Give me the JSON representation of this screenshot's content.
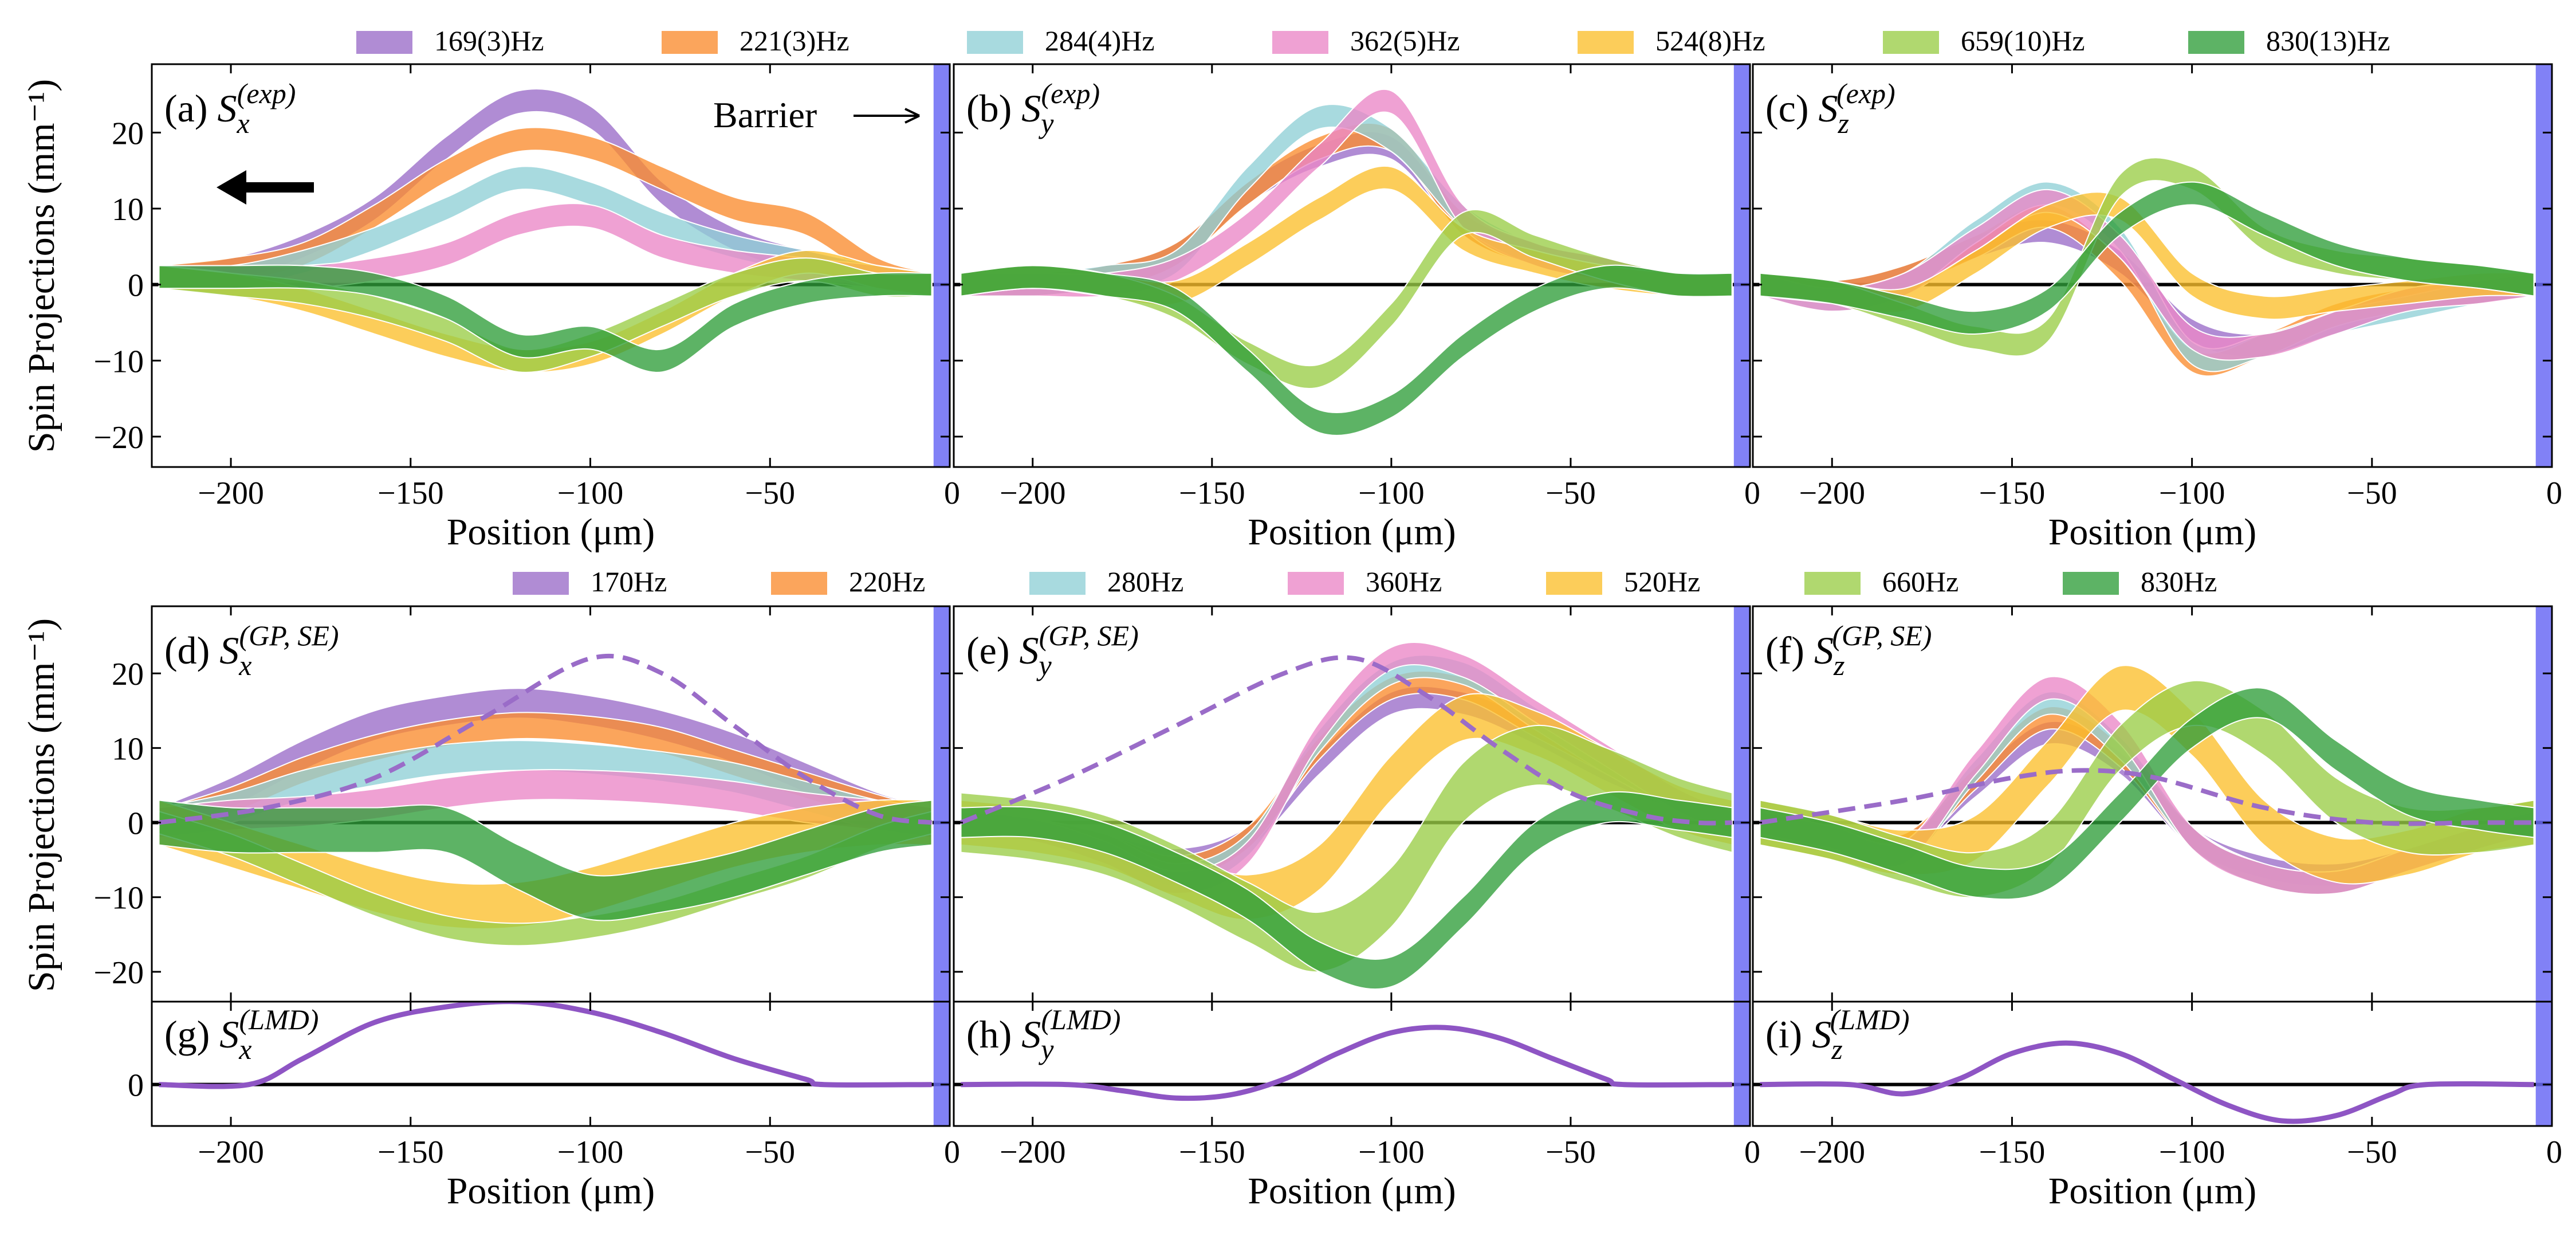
{
  "figure": {
    "ylabel": "Spin Projections (mm⁻¹)",
    "xlabel": "Position (μm)",
    "annotation": "Barrier",
    "xticks": [
      "−200",
      "−150",
      "−100",
      "−50",
      "0"
    ],
    "colors": {
      "s1": "#9a6cc8",
      "s2": "#fa8c2e",
      "s3": "#8fcfd6",
      "s4": "#ea86c6",
      "s5": "#fbbf2b",
      "s6": "#9acd47",
      "s7": "#2f9e3a",
      "barrier": "#6b6bf4",
      "zero": "#000000",
      "lmd": "#8e55c4"
    }
  },
  "legend_top": [
    "169(3)Hz",
    "221(3)Hz",
    "284(4)Hz",
    "362(5)Hz",
    "524(8)Hz",
    "659(10)Hz",
    "830(13)Hz"
  ],
  "legend_bottom": [
    "170Hz",
    "220Hz",
    "280Hz",
    "360Hz",
    "520Hz",
    "660Hz",
    "830Hz"
  ],
  "panels": {
    "a": {
      "tag": "(a)",
      "sub": "x",
      "sup": "(exp)"
    },
    "b": {
      "tag": "(b)",
      "sub": "y",
      "sup": "(exp)"
    },
    "c": {
      "tag": "(c)",
      "sub": "z",
      "sup": "(exp)"
    },
    "d": {
      "tag": "(d)",
      "sub": "x",
      "sup": "(GP, SE)"
    },
    "e": {
      "tag": "(e)",
      "sub": "y",
      "sup": "(GP, SE)"
    },
    "f": {
      "tag": "(f)",
      "sub": "z",
      "sup": "(GP, SE)"
    },
    "g": {
      "tag": "(g)",
      "sub": "x",
      "sup": "(LMD)"
    },
    "h": {
      "tag": "(h)",
      "sub": "y",
      "sup": "(LMD)"
    },
    "i": {
      "tag": "(i)",
      "sub": "z",
      "sup": "(LMD)"
    }
  },
  "chart_data": [
    {
      "type": "area",
      "panel": "a",
      "title": "(a) S_x^(exp)",
      "xlim": [
        -222,
        0
      ],
      "ylim": [
        -24,
        29
      ],
      "yticks": [
        -20,
        -10,
        0,
        10,
        20
      ],
      "x": [
        -220,
        -200,
        -180,
        -160,
        -140,
        -120,
        -100,
        -80,
        -60,
        -40,
        -20,
        -5
      ],
      "series": [
        {
          "name": "169(3)Hz",
          "values": [
            1,
            2,
            5,
            10,
            18,
            24,
            22,
            12,
            6,
            3,
            1,
            0
          ],
          "width": 3
        },
        {
          "name": "221(3)Hz",
          "values": [
            1,
            2,
            4,
            9,
            15,
            19,
            18,
            14,
            10,
            8,
            2,
            0
          ],
          "width": 3
        },
        {
          "name": "284(4)Hz",
          "values": [
            1,
            1,
            3,
            6,
            10,
            14,
            12,
            8,
            5,
            3,
            1,
            0
          ],
          "width": 3
        },
        {
          "name": "362(5)Hz",
          "values": [
            1,
            1,
            1,
            2,
            4,
            8,
            9,
            5,
            3,
            2,
            1,
            0
          ],
          "width": 3
        },
        {
          "name": "524(8)Hz",
          "values": [
            1,
            0,
            -2,
            -5,
            -8,
            -10,
            -9,
            -5,
            0,
            3,
            1,
            0
          ],
          "width": 3
        },
        {
          "name": "659(10)Hz",
          "values": [
            1,
            0,
            -1,
            -3,
            -6,
            -10,
            -8,
            -4,
            0,
            2,
            0,
            0
          ],
          "width": 3
        },
        {
          "name": "830(13)Hz",
          "values": [
            1,
            1,
            1,
            0,
            -3,
            -8,
            -7,
            -10,
            -4,
            -1,
            0,
            0
          ],
          "width": 3
        }
      ]
    },
    {
      "type": "area",
      "panel": "b",
      "title": "(b) S_y^(exp)",
      "xlim": [
        -222,
        0
      ],
      "ylim": [
        -24,
        29
      ],
      "yticks": [
        -20,
        -10,
        0,
        10,
        20
      ],
      "x": [
        -220,
        -200,
        -180,
        -160,
        -140,
        -120,
        -100,
        -80,
        -60,
        -40,
        -20,
        -5
      ],
      "series": [
        {
          "name": "169(3)Hz",
          "values": [
            0,
            0,
            1,
            4,
            12,
            17,
            18,
            8,
            4,
            2,
            0,
            0
          ],
          "width": 3
        },
        {
          "name": "221(3)Hz",
          "values": [
            0,
            0,
            1,
            4,
            12,
            18,
            19,
            8,
            4,
            2,
            0,
            0
          ],
          "width": 3
        },
        {
          "name": "284(4)Hz",
          "values": [
            0,
            0,
            1,
            3,
            14,
            22,
            19,
            9,
            4,
            2,
            0,
            0
          ],
          "width": 3
        },
        {
          "name": "362(5)Hz",
          "values": [
            0,
            0,
            0,
            2,
            8,
            17,
            24,
            9,
            4,
            2,
            0,
            0
          ],
          "width": 3
        },
        {
          "name": "524(8)Hz",
          "values": [
            0,
            1,
            0,
            -1,
            4,
            10,
            14,
            6,
            3,
            1,
            0,
            0
          ],
          "width": 3
        },
        {
          "name": "659(10)Hz",
          "values": [
            0,
            1,
            0,
            -3,
            -9,
            -12,
            -4,
            8,
            5,
            2,
            0,
            0
          ],
          "width": 3
        },
        {
          "name": "830(13)Hz",
          "values": [
            0,
            1,
            0,
            -2,
            -10,
            -18,
            -16,
            -8,
            -2,
            1,
            0,
            0
          ],
          "width": 3
        }
      ]
    },
    {
      "type": "area",
      "panel": "c",
      "title": "(c) S_z^(exp)",
      "xlim": [
        -222,
        0
      ],
      "ylim": [
        -24,
        29
      ],
      "yticks": [
        -20,
        -10,
        0,
        10,
        20
      ],
      "x": [
        -220,
        -200,
        -180,
        -160,
        -140,
        -120,
        -100,
        -80,
        -60,
        -40,
        -20,
        -5
      ],
      "series": [
        {
          "name": "169(3)Hz",
          "values": [
            0,
            -1,
            1,
            5,
            7,
            3,
            -6,
            -8,
            -5,
            -2,
            -1,
            0
          ],
          "width": 3
        },
        {
          "name": "221(3)Hz",
          "values": [
            0,
            -1,
            1,
            5,
            9,
            2,
            -10,
            -8,
            -4,
            -2,
            -1,
            0
          ],
          "width": 3
        },
        {
          "name": "284(4)Hz",
          "values": [
            0,
            -2,
            0,
            7,
            12,
            6,
            -9,
            -8,
            -5,
            -3,
            -1,
            0
          ],
          "width": 3
        },
        {
          "name": "362(5)Hz",
          "values": [
            0,
            -2,
            0,
            6,
            11,
            5,
            -7,
            -8,
            -5,
            -2,
            -1,
            0
          ],
          "width": 3
        },
        {
          "name": "524(8)Hz",
          "values": [
            0,
            -1,
            -2,
            3,
            9,
            10,
            0,
            -3,
            -2,
            -1,
            0,
            0
          ],
          "width": 3
        },
        {
          "name": "659(10)Hz",
          "values": [
            0,
            -1,
            -4,
            -7,
            -6,
            13,
            14,
            6,
            3,
            2,
            1,
            0
          ],
          "width": 3
        },
        {
          "name": "830(13)Hz",
          "values": [
            0,
            -1,
            -3,
            -5,
            -2,
            8,
            12,
            8,
            4,
            2,
            1,
            0
          ],
          "width": 3
        }
      ]
    },
    {
      "type": "area",
      "panel": "d",
      "title": "(d) S_x^(GP,SE)",
      "xlim": [
        -222,
        0
      ],
      "ylim": [
        -24,
        29
      ],
      "yticks": [
        -20,
        -10,
        0,
        10,
        20
      ],
      "x": [
        -220,
        -200,
        -180,
        -160,
        -140,
        -120,
        -100,
        -80,
        -60,
        -40,
        -20,
        -5
      ],
      "series": [
        {
          "name": "170Hz",
          "values": [
            0,
            4,
            9,
            13,
            15,
            16,
            15,
            13,
            10,
            6,
            2,
            0
          ],
          "width": 4
        },
        {
          "name": "220Hz",
          "values": [
            0,
            3,
            7,
            10,
            12,
            13,
            12.5,
            11,
            8,
            5,
            2,
            0
          ],
          "width": 3.5
        },
        {
          "name": "280Hz",
          "values": [
            0,
            2,
            5,
            7,
            8.5,
            9,
            8.5,
            7.5,
            6,
            3.5,
            1,
            0
          ],
          "width": 4
        },
        {
          "name": "360Hz",
          "values": [
            0,
            1,
            1.5,
            2.5,
            4,
            5,
            5,
            4.5,
            3.5,
            2,
            1,
            0
          ],
          "width": 4
        },
        {
          "name": "520Hz",
          "values": [
            0,
            -3,
            -6,
            -9,
            -11,
            -11,
            -9,
            -6,
            -3,
            -1,
            0,
            0
          ],
          "width": 6
        },
        {
          "name": "660Hz",
          "values": [
            0,
            -3,
            -7,
            -11,
            -14,
            -15,
            -14,
            -12,
            -9,
            -6,
            -2,
            0
          ],
          "width": 3
        },
        {
          "name": "830Hz",
          "values": [
            0,
            -1,
            -1,
            -1,
            -1,
            -6,
            -10,
            -9,
            -7,
            -4,
            -1,
            0
          ],
          "width": 6
        }
      ],
      "reference": {
        "x": [
          -220,
          -190,
          -160,
          -130,
          -100,
          -80,
          -60,
          -40,
          -20,
          -5
        ],
        "values": [
          0,
          2,
          6,
          14,
          22,
          20,
          13,
          6,
          1,
          0
        ]
      }
    },
    {
      "type": "area",
      "panel": "e",
      "title": "(e) S_y^(GP,SE)",
      "xlim": [
        -222,
        0
      ],
      "ylim": [
        -24,
        29
      ],
      "yticks": [
        -20,
        -10,
        0,
        10,
        20
      ],
      "x": [
        -220,
        -200,
        -180,
        -160,
        -140,
        -120,
        -100,
        -80,
        -60,
        -40,
        -20,
        -5
      ],
      "series": [
        {
          "name": "170Hz",
          "values": [
            0,
            -1,
            -3,
            -5,
            -2,
            8,
            16,
            16,
            12,
            7,
            3,
            0
          ],
          "width": 3
        },
        {
          "name": "220Hz",
          "values": [
            0,
            -1,
            -3,
            -6,
            -2,
            10,
            18,
            18,
            13,
            8,
            3,
            0
          ],
          "width": 3
        },
        {
          "name": "280Hz",
          "values": [
            0,
            -1,
            -3,
            -7,
            -3,
            11,
            20,
            20,
            14,
            8,
            3,
            0
          ],
          "width": 3
        },
        {
          "name": "360Hz",
          "values": [
            0,
            -1,
            -4,
            -8,
            -4,
            12,
            22,
            21,
            15,
            9,
            3,
            0
          ],
          "width": 3
        },
        {
          "name": "520Hz",
          "values": [
            0,
            -1,
            -3,
            -7,
            -10,
            -6,
            6,
            14,
            12,
            7,
            2,
            0
          ],
          "width": 6
        },
        {
          "name": "660Hz",
          "values": [
            0,
            -1,
            -3,
            -7,
            -12,
            -16,
            -10,
            4,
            9,
            6,
            2,
            0
          ],
          "width": 8
        },
        {
          "name": "830Hz",
          "values": [
            0,
            0,
            -2,
            -6,
            -11,
            -18,
            -20,
            -12,
            -2,
            2,
            1,
            0
          ],
          "width": 4
        }
      ],
      "reference": {
        "x": [
          -220,
          -190,
          -160,
          -130,
          -110,
          -90,
          -70,
          -50,
          -30,
          -15,
          -5
        ],
        "values": [
          0,
          6,
          13,
          20,
          22,
          17,
          10,
          4,
          1,
          0,
          0
        ]
      }
    },
    {
      "type": "area",
      "panel": "f",
      "title": "(f) S_z^(GP,SE)",
      "xlim": [
        -222,
        0
      ],
      "ylim": [
        -24,
        29
      ],
      "yticks": [
        -20,
        -10,
        0,
        10,
        20
      ],
      "x": [
        -220,
        -200,
        -180,
        -160,
        -140,
        -120,
        -100,
        -80,
        -60,
        -40,
        -20,
        -5
      ],
      "series": [
        {
          "name": "170Hz",
          "values": [
            0,
            -2,
            -3,
            5,
            12,
            8,
            -2,
            -6,
            -7,
            -5,
            -2,
            0
          ],
          "width": 3
        },
        {
          "name": "220Hz",
          "values": [
            0,
            -2,
            -3,
            6,
            14,
            9,
            -2,
            -7,
            -8,
            -5,
            -2,
            0
          ],
          "width": 3
        },
        {
          "name": "280Hz",
          "values": [
            0,
            -2,
            -4,
            7,
            16,
            10,
            -2,
            -7,
            -8,
            -5,
            -2,
            0
          ],
          "width": 3
        },
        {
          "name": "360Hz",
          "values": [
            0,
            -2,
            -4,
            8,
            18,
            12,
            -2,
            -7,
            -8,
            -5,
            -2,
            0
          ],
          "width": 3
        },
        {
          "name": "520Hz",
          "values": [
            0,
            -2,
            -4,
            -2,
            8,
            18,
            12,
            0,
            -5,
            -4,
            -1,
            0
          ],
          "width": 6
        },
        {
          "name": "660Hz",
          "values": [
            0,
            -2,
            -5,
            -7,
            -3,
            10,
            16,
            12,
            3,
            -1,
            -1,
            0
          ],
          "width": 6
        },
        {
          "name": "830Hz",
          "values": [
            0,
            -2,
            -5,
            -8,
            -7,
            2,
            12,
            16,
            9,
            3,
            1,
            0
          ],
          "width": 4
        }
      ],
      "reference": {
        "x": [
          -220,
          -180,
          -150,
          -130,
          -110,
          -80,
          -50,
          -20,
          -5
        ],
        "values": [
          0,
          3,
          6,
          7,
          6,
          2,
          0,
          0,
          0
        ]
      }
    },
    {
      "type": "line",
      "panel": "g",
      "title": "(g) S_x^(LMD)",
      "xlim": [
        -222,
        0
      ],
      "ylim": [
        -4,
        8
      ],
      "yticks": [
        0
      ],
      "x": [
        -220,
        -195,
        -180,
        -160,
        -140,
        -120,
        -100,
        -80,
        -60,
        -40,
        -35,
        -5
      ],
      "values": [
        0,
        0,
        2.5,
        6,
        7.5,
        8,
        7,
        5,
        2.5,
        0.5,
        0,
        0
      ]
    },
    {
      "type": "line",
      "panel": "h",
      "title": "(h) S_y^(LMD)",
      "xlim": [
        -222,
        0
      ],
      "ylim": [
        -4,
        8
      ],
      "yticks": [
        0
      ],
      "x": [
        -220,
        -190,
        -175,
        -160,
        -145,
        -130,
        -115,
        -100,
        -85,
        -70,
        -55,
        -40,
        -35,
        -5
      ],
      "values": [
        0,
        0,
        -0.6,
        -1.3,
        -1,
        0.5,
        3,
        5,
        5.5,
        4.5,
        2.5,
        0.5,
        0,
        0
      ]
    },
    {
      "type": "line",
      "panel": "i",
      "title": "(i) S_z^(LMD)",
      "xlim": [
        -222,
        0
      ],
      "ylim": [
        -4,
        8
      ],
      "yticks": [
        0
      ],
      "x": [
        -220,
        -195,
        -180,
        -165,
        -150,
        -135,
        -120,
        -105,
        -90,
        -75,
        -60,
        -45,
        -35,
        -5
      ],
      "values": [
        0,
        0,
        -0.9,
        0.5,
        3,
        4,
        3,
        0.5,
        -2,
        -3.5,
        -3,
        -1,
        0,
        0
      ]
    }
  ]
}
